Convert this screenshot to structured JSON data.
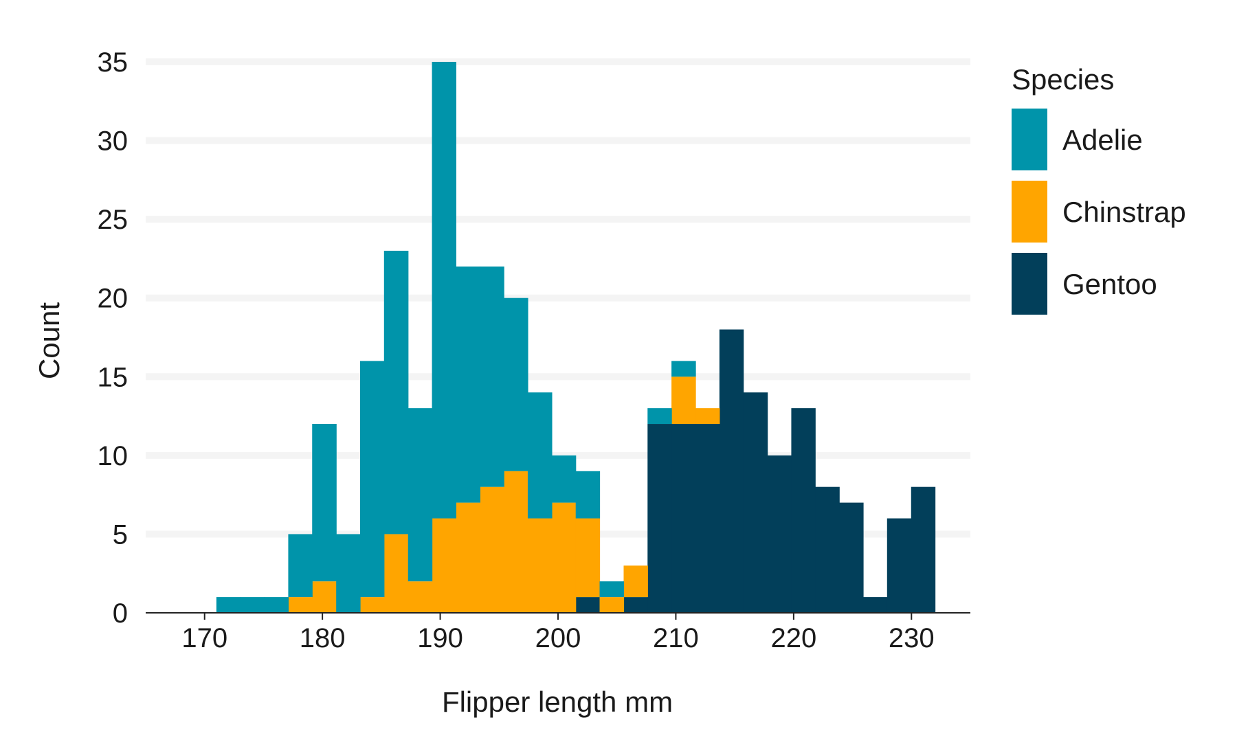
{
  "chart_data": {
    "type": "bar",
    "subtype": "stacked-histogram",
    "xlabel": "Flipper length mm",
    "ylabel": "Count",
    "xlim": [
      165,
      235
    ],
    "ylim": [
      0,
      35
    ],
    "xticks": [
      170,
      180,
      190,
      200,
      210,
      220,
      230
    ],
    "yticks": [
      0,
      5,
      10,
      15,
      20,
      25,
      30,
      35
    ],
    "grid": "horizontal",
    "legend_title": "Species",
    "legend_position": "right",
    "bins": [
      [
        171.0,
        173.03
      ],
      [
        173.03,
        175.07
      ],
      [
        175.07,
        177.1
      ],
      [
        177.1,
        179.13
      ],
      [
        179.13,
        181.17
      ],
      [
        181.17,
        183.2
      ],
      [
        183.2,
        185.23
      ],
      [
        185.23,
        187.27
      ],
      [
        187.27,
        189.3
      ],
      [
        189.3,
        191.33
      ],
      [
        191.33,
        193.37
      ],
      [
        193.37,
        195.4
      ],
      [
        195.4,
        197.43
      ],
      [
        197.43,
        199.47
      ],
      [
        199.47,
        201.5
      ],
      [
        201.5,
        203.53
      ],
      [
        203.53,
        205.57
      ],
      [
        205.57,
        207.6
      ],
      [
        207.6,
        209.63
      ],
      [
        209.63,
        211.67
      ],
      [
        211.67,
        213.7
      ],
      [
        213.7,
        215.73
      ],
      [
        215.73,
        217.77
      ],
      [
        217.77,
        219.8
      ],
      [
        219.8,
        221.83
      ],
      [
        221.83,
        223.87
      ],
      [
        223.87,
        225.9
      ],
      [
        225.9,
        227.93
      ],
      [
        227.93,
        229.97
      ],
      [
        229.97,
        232.0
      ]
    ],
    "series": [
      {
        "name": "Gentoo",
        "color": "#023f5a",
        "values": [
          0,
          0,
          0,
          0,
          0,
          0,
          0,
          0,
          0,
          0,
          0,
          0,
          0,
          0,
          0,
          1,
          0,
          1,
          12,
          12,
          12,
          18,
          14,
          10,
          13,
          8,
          7,
          1,
          6,
          8
        ]
      },
      {
        "name": "Chinstrap",
        "color": "#ffa500",
        "values": [
          0,
          0,
          0,
          1,
          2,
          0,
          1,
          5,
          2,
          6,
          7,
          8,
          9,
          6,
          7,
          5,
          1,
          2,
          0,
          3,
          1,
          0,
          0,
          0,
          0,
          0,
          0,
          0,
          0,
          0
        ]
      },
      {
        "name": "Adelie",
        "color": "#0094aa",
        "values": [
          1,
          1,
          1,
          4,
          10,
          5,
          15,
          18,
          11,
          29,
          15,
          14,
          11,
          8,
          3,
          3,
          1,
          0,
          1,
          1,
          0,
          0,
          0,
          0,
          0,
          0,
          0,
          0,
          0,
          0
        ]
      }
    ],
    "legend_order": [
      "Adelie",
      "Chinstrap",
      "Gentoo"
    ]
  }
}
